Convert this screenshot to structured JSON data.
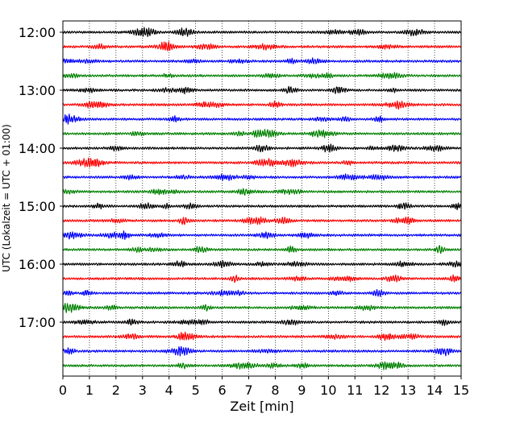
{
  "chart_data": {
    "type": "line",
    "title": "",
    "xlabel": "Zeit  [min]",
    "ylabel": "UTC (Lokalzeit = UTC + 01:00)",
    "xlim": [
      0,
      15
    ],
    "x_ticks": [
      "0",
      "1",
      "2",
      "3",
      "4",
      "5",
      "6",
      "7",
      "8",
      "9",
      "10",
      "11",
      "12",
      "13",
      "14",
      "15"
    ],
    "y_tick_labels": [
      "12:00",
      "13:00",
      "14:00",
      "15:00",
      "16:00",
      "17:00"
    ],
    "grid": "vertical dotted lines at each minute",
    "trace_interval_min": 15,
    "trace_colors": [
      "#000000",
      "#ff0000",
      "#0000ff",
      "#008000"
    ],
    "traces": [
      {
        "start": "12:00",
        "color": "#000000"
      },
      {
        "start": "12:15",
        "color": "#ff0000"
      },
      {
        "start": "12:30",
        "color": "#0000ff"
      },
      {
        "start": "12:45",
        "color": "#008000"
      },
      {
        "start": "13:00",
        "color": "#000000"
      },
      {
        "start": "13:15",
        "color": "#ff0000"
      },
      {
        "start": "13:30",
        "color": "#0000ff"
      },
      {
        "start": "13:45",
        "color": "#008000"
      },
      {
        "start": "14:00",
        "color": "#000000"
      },
      {
        "start": "14:15",
        "color": "#ff0000"
      },
      {
        "start": "14:30",
        "color": "#0000ff"
      },
      {
        "start": "14:45",
        "color": "#008000"
      },
      {
        "start": "15:00",
        "color": "#000000"
      },
      {
        "start": "15:15",
        "color": "#ff0000"
      },
      {
        "start": "15:30",
        "color": "#0000ff"
      },
      {
        "start": "15:45",
        "color": "#008000"
      },
      {
        "start": "16:00",
        "color": "#000000"
      },
      {
        "start": "16:15",
        "color": "#ff0000"
      },
      {
        "start": "16:30",
        "color": "#0000ff"
      },
      {
        "start": "16:45",
        "color": "#008000"
      },
      {
        "start": "17:00",
        "color": "#000000"
      },
      {
        "start": "17:15",
        "color": "#ff0000"
      },
      {
        "start": "17:30",
        "color": "#0000ff"
      },
      {
        "start": "17:45",
        "color": "#008000"
      }
    ]
  }
}
